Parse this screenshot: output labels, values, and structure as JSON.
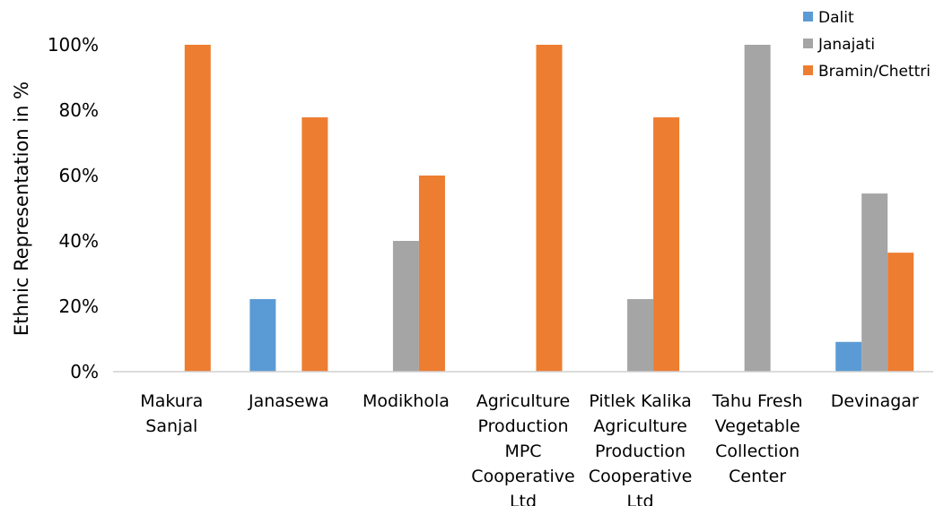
{
  "chart_data": {
    "type": "bar",
    "title": "",
    "xlabel": "",
    "ylabel": "Ethnic Representation in %",
    "ylim": [
      0,
      100
    ],
    "y_ticks": [
      "0%",
      "20%",
      "40%",
      "60%",
      "80%",
      "100%"
    ],
    "y_tick_values": [
      0,
      20,
      40,
      60,
      80,
      100
    ],
    "categories": [
      [
        "Makura",
        "Sanjal"
      ],
      [
        "Janasewa"
      ],
      [
        "Modikhola"
      ],
      [
        "Agriculture",
        "Production",
        "MPC",
        "Cooperative",
        "Ltd"
      ],
      [
        "Pitlek Kalika",
        "Agriculture",
        "Production",
        "Cooperative",
        "Ltd"
      ],
      [
        "Tahu Fresh",
        "Vegetable",
        "Collection",
        "Center"
      ],
      [
        "Devinagar"
      ]
    ],
    "series": [
      {
        "name": "Dalit",
        "color": "#5b9bd5",
        "values": [
          0,
          22.2,
          0,
          0,
          0,
          0,
          9.1
        ]
      },
      {
        "name": "Janajati",
        "color": "#a5a5a5",
        "values": [
          0,
          0,
          40,
          0,
          22.2,
          100,
          54.5
        ]
      },
      {
        "name": "Bramin/Chettri",
        "color": "#ed7d31",
        "values": [
          100,
          77.8,
          60,
          100,
          77.8,
          0,
          36.4
        ]
      }
    ],
    "legend_position": "top-right",
    "grid": false
  }
}
